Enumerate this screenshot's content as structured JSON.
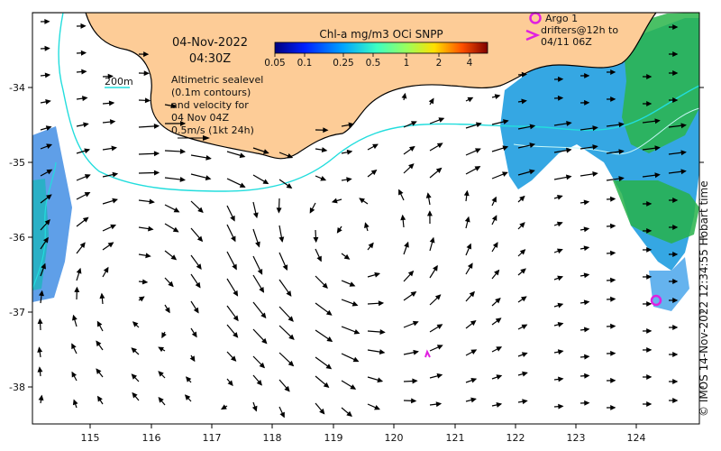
{
  "map": {
    "date": "04-Nov-2022",
    "time": "04:30Z",
    "legend_contour": "200m",
    "annotation_lines": [
      "Altimetric sealevel",
      "(0.1m contours)",
      "and velocity for",
      "04 Nov 04Z",
      "0.5m/s (1kt 24h)"
    ],
    "colorbar": {
      "title": "Chl-a mg/m3 OCi SNPP",
      "ticks": [
        "0.05",
        "0.1",
        "0.25",
        "0.5",
        "1",
        "2",
        "4"
      ],
      "colors": [
        "#00007f",
        "#0020ff",
        "#00a4ff",
        "#3cffc2",
        "#9aff5c",
        "#ffe000",
        "#ff5000",
        "#7f0000"
      ]
    },
    "argo_label": "Argo 1",
    "drifters_lines": [
      "drifters@12h to",
      "04/11 06Z"
    ],
    "x_ticks": [
      "115",
      "116",
      "117",
      "118",
      "119",
      "120",
      "121",
      "122",
      "123",
      "124"
    ],
    "y_ticks": [
      "-34",
      "-35",
      "-36",
      "-37",
      "-38"
    ],
    "credit": "© IMOS 14-Nov-2022 12:34:55 Hobart time",
    "colors": {
      "land": "#fdcc97",
      "coast": "#000000",
      "contour": "#22dddd",
      "marker": "#e020e0",
      "arrow": "#000000"
    }
  }
}
